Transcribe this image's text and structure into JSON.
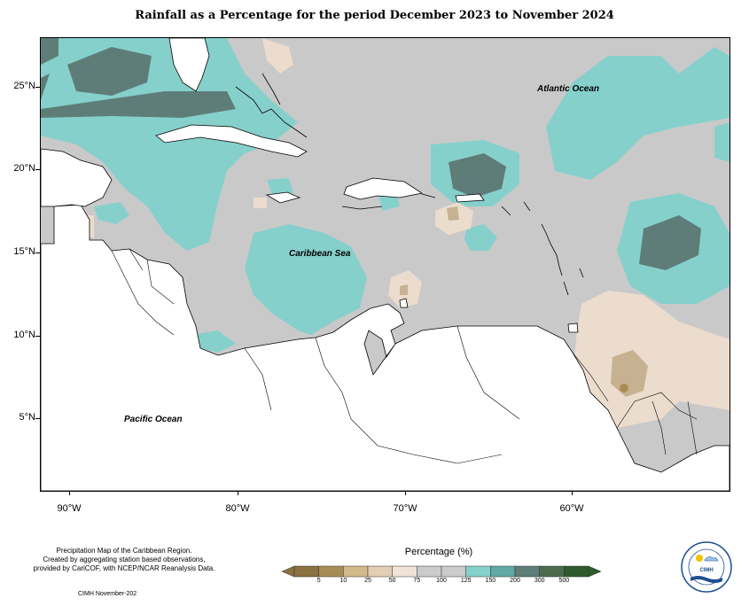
{
  "title": "Rainfall as a Percentage for the period December 2023 to November 2024",
  "map": {
    "labels": {
      "atlantic": "Atlantic Ocean",
      "caribbean": "Caribbean Sea",
      "pacific": "Pacific Ocean"
    },
    "lat_ticks": [
      "25°N",
      "20°N",
      "15°N",
      "10°N",
      "5°N"
    ],
    "lon_ticks": [
      "90°W",
      "80°W",
      "70°W",
      "60°W"
    ]
  },
  "footer": {
    "description": [
      "Precipitation Map of the Caribbean Region.",
      "Created by aggregating station based observations,",
      "provided by CariCOF, with NCEP/NCAR Reanalysis Data."
    ],
    "credit": "CIMH November-202"
  },
  "legend": {
    "title": "Percentage (%)",
    "labels": [
      "5",
      "10",
      "25",
      "50",
      "75",
      "100",
      "125",
      "150",
      "200",
      "300",
      "500"
    ],
    "colors": [
      "#8b7040",
      "#a88c58",
      "#d3b88a",
      "#e3cdb4",
      "#f0e2d6",
      "#cbcbcb",
      "#cbcbcb",
      "#86d0cc",
      "#5fa8a4",
      "#5e7d78",
      "#4c6a4e",
      "#2e5a2e"
    ]
  },
  "logo": {
    "text": "CIMH"
  }
}
